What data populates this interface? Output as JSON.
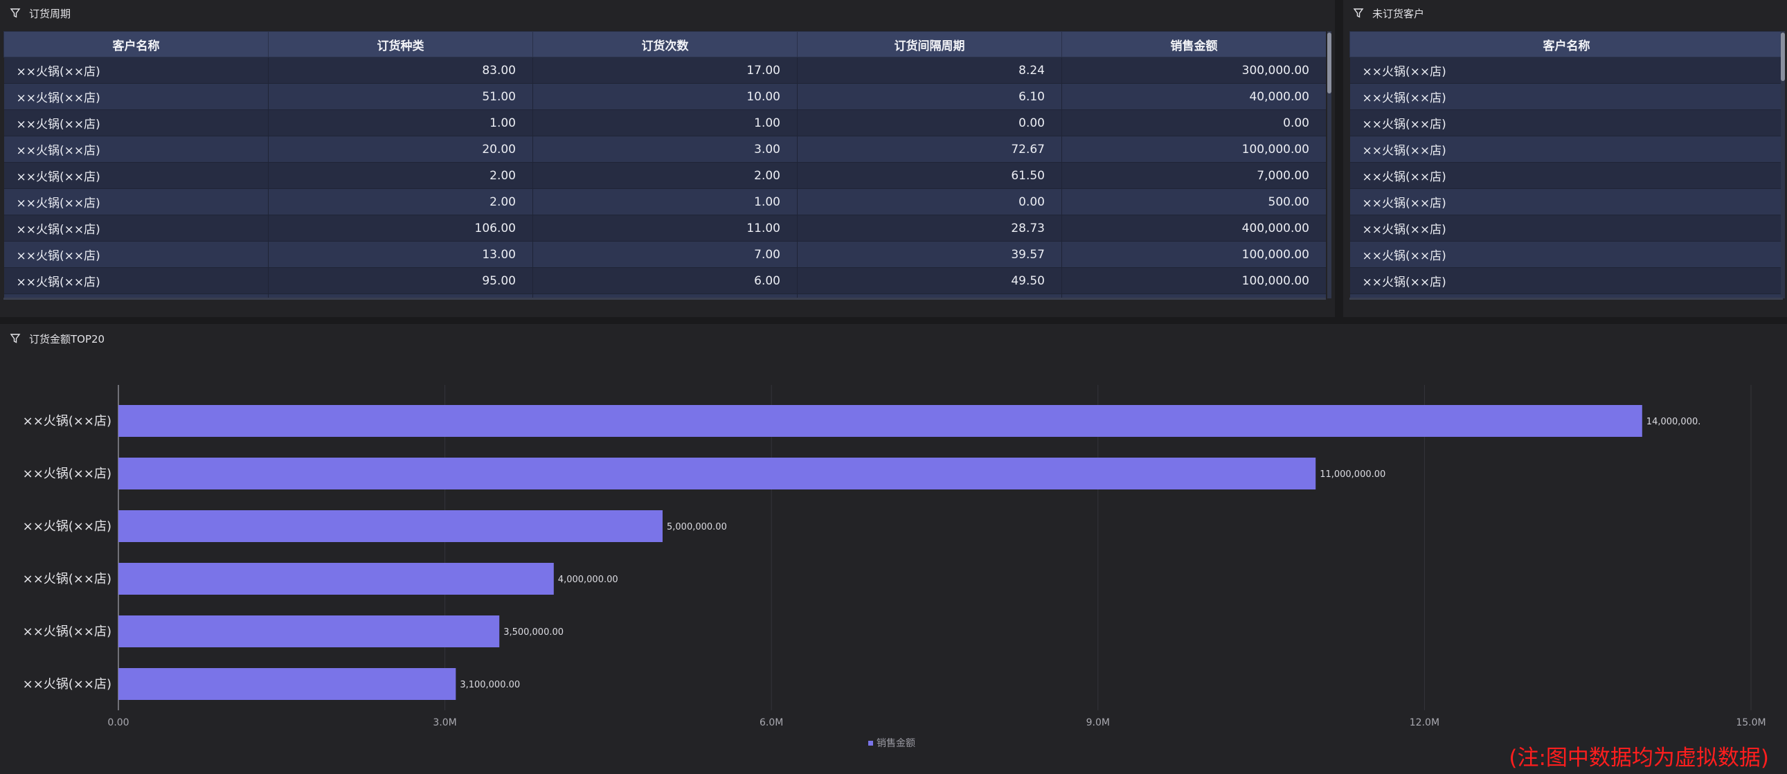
{
  "order_cycle": {
    "title": "订货周期",
    "columns": [
      "客户名称",
      "订货种类",
      "订货次数",
      "订货间隔周期",
      "销售金额"
    ],
    "rows": [
      [
        "××火锅(××店)",
        "83.00",
        "17.00",
        "8.24",
        "300,000.00"
      ],
      [
        "××火锅(××店)",
        "51.00",
        "10.00",
        "6.10",
        "40,000.00"
      ],
      [
        "××火锅(××店)",
        "1.00",
        "1.00",
        "0.00",
        "0.00"
      ],
      [
        "××火锅(××店)",
        "20.00",
        "3.00",
        "72.67",
        "100,000.00"
      ],
      [
        "××火锅(××店)",
        "2.00",
        "2.00",
        "61.50",
        "7,000.00"
      ],
      [
        "××火锅(××店)",
        "2.00",
        "1.00",
        "0.00",
        "500.00"
      ],
      [
        "××火锅(××店)",
        "106.00",
        "11.00",
        "28.73",
        "400,000.00"
      ],
      [
        "××火锅(××店)",
        "13.00",
        "7.00",
        "39.57",
        "100,000.00"
      ],
      [
        "××火锅(××店)",
        "95.00",
        "6.00",
        "49.50",
        "100,000.00"
      ]
    ]
  },
  "no_order_customers": {
    "title": "未订货客户",
    "columns": [
      "客户名称"
    ],
    "rows": [
      [
        "××火锅(××店)"
      ],
      [
        "××火锅(××店)"
      ],
      [
        "××火锅(××店)"
      ],
      [
        "××火锅(××店)"
      ],
      [
        "××火锅(××店)"
      ],
      [
        "××火锅(××店)"
      ],
      [
        "××火锅(××店)"
      ],
      [
        "××火锅(××店)"
      ],
      [
        "××火锅(××店)"
      ]
    ]
  },
  "top20": {
    "title": "订货金额TOP20"
  },
  "colors": {
    "bar": "#7a74e8",
    "header": "#394364",
    "note": "#ff1e1e"
  },
  "chart_data": {
    "type": "bar",
    "orientation": "horizontal",
    "categories": [
      "××火锅(××店)",
      "××火锅(××店)",
      "××火锅(××店)",
      "××火锅(××店)",
      "××火锅(××店)",
      "××火锅(××店)"
    ],
    "series": [
      {
        "name": "销售金额",
        "values": [
          14000000,
          11000000,
          5000000,
          4000000,
          3500000,
          3100000
        ]
      }
    ],
    "value_labels": [
      "14,000,000.",
      "11,000,000.00",
      "5,000,000.00",
      "4,000,000.00",
      "3,500,000.00",
      "3,100,000.00"
    ],
    "xticks": [
      "0.00",
      "3.0M",
      "6.0M",
      "9.0M",
      "12.0M",
      "15.0M"
    ],
    "xlim": [
      0,
      15000000
    ],
    "grid": true,
    "legend": "bottom-center"
  },
  "note": "(注:图中数据均为虚拟数据)"
}
